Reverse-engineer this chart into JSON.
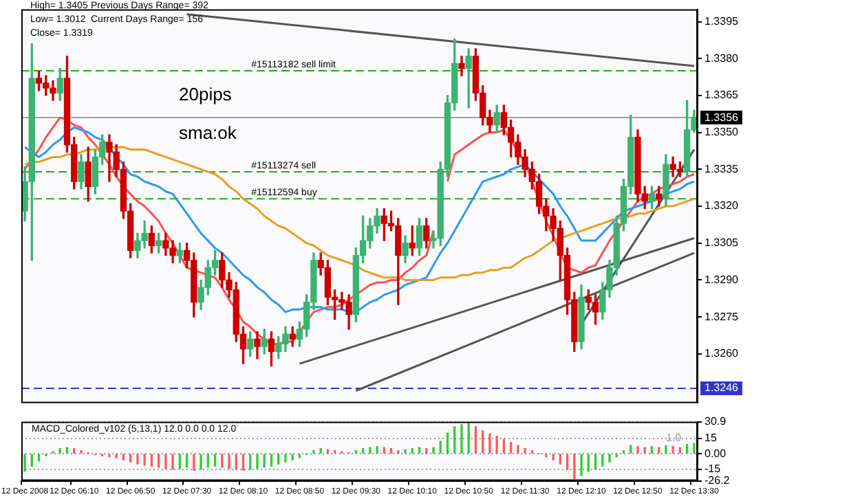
{
  "chart_data": [
    {
      "type": "candlestick",
      "categories": [
        "12 Dec 2008",
        null,
        null,
        null,
        null,
        null,
        null,
        "12 Dec 06:10",
        null,
        null,
        null,
        null,
        null,
        null,
        null,
        "12 Dec 06:50",
        null,
        null,
        null,
        null,
        null,
        null,
        null,
        "12 Dec 07:30",
        null,
        null,
        null,
        null,
        null,
        null,
        null,
        "12 Dec 08:10",
        null,
        null,
        null,
        null,
        null,
        null,
        null,
        "12 Dec 08:50",
        null,
        null,
        null,
        null,
        null,
        null,
        null,
        "12 Dec 09:30",
        null,
        null,
        null,
        null,
        null,
        null,
        null,
        "12 Dec 10:10",
        null,
        null,
        null,
        null,
        null,
        null,
        null,
        "12 Dec 10:50",
        null,
        null,
        null,
        null,
        null,
        null,
        null,
        "12 Dec 11:30",
        null,
        null,
        null,
        null,
        null,
        null,
        null,
        "12 Dec 12:10",
        null,
        null,
        null,
        null,
        null,
        null,
        null,
        "12 Dec 12:50",
        null,
        null,
        null,
        null,
        null,
        null,
        null,
        "12 Dec 13:30"
      ],
      "ohlc": [
        [
          1.3318,
          1.3336,
          1.3314,
          1.333
        ],
        [
          1.333,
          1.3386,
          1.3298,
          1.3372
        ],
        [
          1.3372,
          1.3375,
          1.3367,
          1.337
        ],
        [
          1.337,
          1.3373,
          1.3365,
          1.3368
        ],
        [
          1.3368,
          1.3371,
          1.3363,
          1.3366
        ],
        [
          1.3366,
          1.3376,
          1.3363,
          1.3372
        ],
        [
          1.3372,
          1.3381,
          1.3342,
          1.3345
        ],
        [
          1.3345,
          1.3348,
          1.3327,
          1.333
        ],
        [
          1.333,
          1.3341,
          1.3327,
          1.3338
        ],
        [
          1.3338,
          1.3344,
          1.3322,
          1.3328
        ],
        [
          1.3328,
          1.3343,
          1.3325,
          1.334
        ],
        [
          1.334,
          1.3349,
          1.3337,
          1.3346
        ],
        [
          1.3346,
          1.3349,
          1.333,
          1.3342
        ],
        [
          1.3342,
          1.3345,
          1.3332,
          1.3335
        ],
        [
          1.3335,
          1.3338,
          1.3315,
          1.3318
        ],
        [
          1.3318,
          1.3321,
          1.3299,
          1.3302
        ],
        [
          1.3302,
          1.3309,
          1.3299,
          1.3306
        ],
        [
          1.3306,
          1.3314,
          1.3303,
          1.3309
        ],
        [
          1.3309,
          1.3312,
          1.3301,
          1.3304
        ],
        [
          1.3304,
          1.3309,
          1.3301,
          1.3306
        ],
        [
          1.3306,
          1.3309,
          1.33,
          1.3303
        ],
        [
          1.3303,
          1.3306,
          1.3297,
          1.33
        ],
        [
          1.33,
          1.3305,
          1.3297,
          1.3302
        ],
        [
          1.3302,
          1.3305,
          1.3295,
          1.3298
        ],
        [
          1.3298,
          1.3301,
          1.3275,
          1.3281
        ],
        [
          1.3281,
          1.329,
          1.3278,
          1.3287
        ],
        [
          1.3287,
          1.3298,
          1.3284,
          1.3295
        ],
        [
          1.3295,
          1.3302,
          1.3292,
          1.3298
        ],
        [
          1.3298,
          1.3301,
          1.3287,
          1.329
        ],
        [
          1.329,
          1.3293,
          1.3283,
          1.3286
        ],
        [
          1.3286,
          1.3289,
          1.3265,
          1.3268
        ],
        [
          1.3268,
          1.3271,
          1.3256,
          1.3262
        ],
        [
          1.3262,
          1.3269,
          1.3259,
          1.3266
        ],
        [
          1.3266,
          1.3269,
          1.3258,
          1.3263
        ],
        [
          1.3263,
          1.327,
          1.326,
          1.3266
        ],
        [
          1.3266,
          1.3269,
          1.3255,
          1.3261
        ],
        [
          1.3261,
          1.3267,
          1.3258,
          1.3264
        ],
        [
          1.3264,
          1.3271,
          1.3261,
          1.3268
        ],
        [
          1.3268,
          1.3271,
          1.3263,
          1.3266
        ],
        [
          1.3266,
          1.3273,
          1.3263,
          1.327
        ],
        [
          1.327,
          1.3284,
          1.3267,
          1.3281
        ],
        [
          1.3281,
          1.3301,
          1.3278,
          1.3298
        ],
        [
          1.3298,
          1.3301,
          1.3292,
          1.3295
        ],
        [
          1.3295,
          1.3298,
          1.328,
          1.3283
        ],
        [
          1.3283,
          1.3286,
          1.3274,
          1.3282
        ],
        [
          1.3282,
          1.3285,
          1.3278,
          1.3281
        ],
        [
          1.3281,
          1.3284,
          1.327,
          1.3276
        ],
        [
          1.3276,
          1.3303,
          1.3273,
          1.33
        ],
        [
          1.33,
          1.3316,
          1.3297,
          1.3306
        ],
        [
          1.3306,
          1.3315,
          1.3303,
          1.3312
        ],
        [
          1.3312,
          1.3319,
          1.3309,
          1.3316
        ],
        [
          1.3316,
          1.3319,
          1.3306,
          1.3313
        ],
        [
          1.3313,
          1.3318,
          1.331,
          1.3312
        ],
        [
          1.3312,
          1.3315,
          1.328,
          1.33
        ],
        [
          1.33,
          1.3308,
          1.3297,
          1.3305
        ],
        [
          1.3305,
          1.3312,
          1.33,
          1.3303
        ],
        [
          1.3303,
          1.3315,
          1.33,
          1.3312
        ],
        [
          1.3312,
          1.3315,
          1.3303,
          1.3306
        ],
        [
          1.3306,
          1.331,
          1.3303,
          1.3307
        ],
        [
          1.3307,
          1.3338,
          1.3304,
          1.3335
        ],
        [
          1.3335,
          1.3365,
          1.3332,
          1.3362
        ],
        [
          1.3362,
          1.3388,
          1.3359,
          1.3378
        ],
        [
          1.3378,
          1.3381,
          1.3373,
          1.3376
        ],
        [
          1.3376,
          1.3384,
          1.336,
          1.3381
        ],
        [
          1.3381,
          1.3384,
          1.3363,
          1.3366
        ],
        [
          1.3366,
          1.3369,
          1.3353,
          1.3356
        ],
        [
          1.3356,
          1.3359,
          1.335,
          1.3353
        ],
        [
          1.3353,
          1.3361,
          1.335,
          1.3358
        ],
        [
          1.3358,
          1.3361,
          1.3349,
          1.3352
        ],
        [
          1.3352,
          1.3355,
          1.334,
          1.3346
        ],
        [
          1.3346,
          1.3349,
          1.3337,
          1.334
        ],
        [
          1.334,
          1.3343,
          1.3332,
          1.3335
        ],
        [
          1.3335,
          1.3338,
          1.3327,
          1.333
        ],
        [
          1.333,
          1.3333,
          1.3317,
          1.332
        ],
        [
          1.332,
          1.3323,
          1.331,
          1.3316
        ],
        [
          1.3316,
          1.3319,
          1.3306,
          1.3311
        ],
        [
          1.3311,
          1.3314,
          1.329,
          1.33
        ],
        [
          1.33,
          1.3303,
          1.3276,
          1.3282
        ],
        [
          1.3282,
          1.3285,
          1.3261,
          1.3265
        ],
        [
          1.3265,
          1.3288,
          1.3262,
          1.3283
        ],
        [
          1.3283,
          1.3286,
          1.3278,
          1.3281
        ],
        [
          1.3281,
          1.3284,
          1.3272,
          1.3277
        ],
        [
          1.3277,
          1.3289,
          1.3274,
          1.3286
        ],
        [
          1.3286,
          1.3298,
          1.3283,
          1.3295
        ],
        [
          1.3295,
          1.3316,
          1.3292,
          1.3313
        ],
        [
          1.3313,
          1.3331,
          1.331,
          1.3328
        ],
        [
          1.3328,
          1.3357,
          1.3325,
          1.3348
        ],
        [
          1.3348,
          1.3351,
          1.3322,
          1.3325
        ],
        [
          1.3325,
          1.3328,
          1.3319,
          1.3322
        ],
        [
          1.3322,
          1.3328,
          1.3319,
          1.3325
        ],
        [
          1.3325,
          1.3328,
          1.332,
          1.3323
        ],
        [
          1.3323,
          1.3341,
          1.332,
          1.3337
        ],
        [
          1.3337,
          1.334,
          1.3332,
          1.3335
        ],
        [
          1.3335,
          1.3338,
          1.3332,
          1.3334
        ],
        [
          1.3334,
          1.3363,
          1.3332,
          1.3351
        ],
        [
          1.3351,
          1.3359,
          1.335,
          1.3356
        ]
      ],
      "colors": [
        "#3cb371",
        "#3cb371",
        "#cc0000",
        "#cc0000",
        "#cc0000",
        "#3cb371",
        "#cc0000",
        "#cc0000",
        "#3cb371",
        "#cc0000",
        "#3cb371",
        "#3cb371",
        "#cc0000",
        "#cc0000",
        "#cc0000",
        "#cc0000",
        "#3cb371",
        "#3cb371",
        "#cc0000",
        "#3cb371",
        "#cc0000",
        "#cc0000",
        "#3cb371",
        "#cc0000",
        "#cc0000",
        "#3cb371",
        "#3cb371",
        "#3cb371",
        "#cc0000",
        "#cc0000",
        "#cc0000",
        "#cc0000",
        "#3cb371",
        "#cc0000",
        "#3cb371",
        "#cc0000",
        "#3cb371",
        "#3cb371",
        "#cc0000",
        "#3cb371",
        "#3cb371",
        "#3cb371",
        "#cc0000",
        "#cc0000",
        "#cc0000",
        "#cc0000",
        "#cc0000",
        "#3cb371",
        "#3cb371",
        "#3cb371",
        "#3cb371",
        "#cc0000",
        "#cc0000",
        "#cc0000",
        "#3cb371",
        "#cc0000",
        "#3cb371",
        "#cc0000",
        "#3cb371",
        "#3cb371",
        "#3cb371",
        "#3cb371",
        "#cc0000",
        "#3cb371",
        "#cc0000",
        "#cc0000",
        "#cc0000",
        "#3cb371",
        "#cc0000",
        "#cc0000",
        "#cc0000",
        "#cc0000",
        "#cc0000",
        "#cc0000",
        "#cc0000",
        "#cc0000",
        "#cc0000",
        "#cc0000",
        "#cc0000",
        "#3cb371",
        "#cc0000",
        "#cc0000",
        "#3cb371",
        "#3cb371",
        "#3cb371",
        "#3cb371",
        "#3cb371",
        "#cc0000",
        "#cc0000",
        "#3cb371",
        "#cc0000",
        "#3cb371",
        "#cc0000",
        "#cc0000",
        "#3cb371",
        "#3cb371"
      ],
      "series": [
        {
          "type": "line",
          "color": "#e6a020",
          "values": [
            1.3337,
            1.3338,
            1.3338,
            1.3339,
            1.334,
            1.334,
            1.3341,
            1.3341,
            1.3342,
            1.3343,
            1.3343,
            1.3344,
            1.3344,
            1.3344,
            1.3344,
            1.3343,
            1.3343,
            1.3343,
            1.3342,
            1.3341,
            1.334,
            1.3339,
            1.3338,
            1.3337,
            1.3336,
            1.3335,
            1.3334,
            1.3333,
            1.3331,
            1.3328,
            1.3326,
            1.3323,
            1.3321,
            1.3319,
            1.3316,
            1.3314,
            1.3312,
            1.3311,
            1.3309,
            1.3307,
            1.3305,
            1.3304,
            1.3302,
            1.33,
            1.3299,
            1.3298,
            1.3297,
            1.3296,
            1.3294,
            1.3293,
            1.3292,
            1.3291,
            1.3291,
            1.3291,
            1.329,
            1.329,
            1.329,
            1.329,
            1.329,
            1.3291,
            1.3291,
            1.3291,
            1.3292,
            1.3292,
            1.3293,
            1.3293,
            1.3294,
            1.3294,
            1.3295,
            1.3295,
            1.3297,
            1.3299,
            1.33,
            1.3302,
            1.3304,
            1.3306,
            1.3307,
            1.3308,
            1.3309,
            1.331,
            1.3311,
            1.3312,
            1.3313,
            1.3314,
            1.3315,
            1.3315,
            1.3316,
            1.3317,
            1.3317,
            1.3318,
            1.3319,
            1.332,
            1.332,
            1.3321,
            1.3322,
            1.3323
          ]
        },
        {
          "type": "line",
          "color": "#2b9af3",
          "values": [
            1.3344,
            1.3342,
            1.334,
            1.3342,
            1.3345,
            1.3347,
            1.335,
            1.3352,
            1.3351,
            1.335,
            1.3348,
            1.3347,
            1.3344,
            1.334,
            1.3337,
            1.3333,
            1.3332,
            1.333,
            1.3329,
            1.3328,
            1.3326,
            1.3325,
            1.3321,
            1.3317,
            1.3313,
            1.3309,
            1.3306,
            1.3303,
            1.3301,
            1.3298,
            1.3295,
            1.3292,
            1.329,
            1.3287,
            1.3285,
            1.3282,
            1.328,
            1.3277,
            1.3278,
            1.3278,
            1.3279,
            1.3279,
            1.3279,
            1.3278,
            1.3278,
            1.3278,
            1.3277,
            1.3277,
            1.3279,
            1.3281,
            1.3282,
            1.3284,
            1.3285,
            1.3286,
            1.3288,
            1.3289,
            1.329,
            1.3291,
            1.3296,
            1.3301,
            1.3305,
            1.331,
            1.3315,
            1.332,
            1.3325,
            1.333,
            1.3331,
            1.3332,
            1.3333,
            1.3335,
            1.3336,
            1.3337,
            1.3334,
            1.3331,
            1.3328,
            1.3325,
            1.332,
            1.3316,
            1.3311,
            1.3306,
            1.3306,
            1.3306,
            1.3309,
            1.3312,
            1.3315,
            1.3318,
            1.3319,
            1.332,
            1.3321,
            1.3322,
            1.3323,
            1.3325,
            1.3326,
            1.3327,
            1.3329,
            1.333
          ]
        },
        {
          "type": "line",
          "color": "#ff5050",
          "values": [
            1.3335,
            1.3339,
            1.3343,
            1.3348,
            1.3352,
            1.3356,
            1.3355,
            1.3353,
            1.3352,
            1.3348,
            1.3345,
            1.3341,
            1.3337,
            1.3332,
            1.3328,
            1.3325,
            1.3322,
            1.332,
            1.3317,
            1.3314,
            1.3309,
            1.3305,
            1.33,
            1.3295,
            1.3294,
            1.3293,
            1.3292,
            1.3291,
            1.3287,
            1.3282,
            1.3278,
            1.3273,
            1.3271,
            1.3268,
            1.3266,
            1.3264,
            1.3264,
            1.3265,
            1.3265,
            1.3269,
            1.3273,
            1.3277,
            1.3278,
            1.3279,
            1.3279,
            1.328,
            1.3282,
            1.3284,
            1.3286,
            1.3288,
            1.3289,
            1.3289,
            1.329,
            1.329,
            1.3293,
            1.3295,
            1.3298,
            1.33,
            1.331,
            null,
            1.333,
            1.3341,
            1.3343,
            1.3345,
            1.3347,
            1.3349,
            1.335,
            1.335,
            1.3351,
            1.3347,
            1.3342,
            1.3338,
            1.333,
            1.3322,
            1.3314,
            1.3308,
            1.3301,
            1.3295,
            1.3294,
            1.3293,
            1.3295,
            1.3296,
            1.3301,
            1.3306,
            1.331,
            1.3314,
            1.3318,
            1.3322,
            1.3324,
            1.3325,
            1.3327,
            1.3328,
            1.3329,
            1.333,
            1.3332,
            1.3333
          ]
        },
        {
          "type": "line",
          "color": "#555555",
          "x": [
            "12 Dec 07:30",
            "12 Dec 13:30"
          ],
          "values": [
            1.3398,
            1.3377
          ]
        },
        {
          "type": "line",
          "color": "#555555",
          "x": [
            "12 Dec 08:50",
            "12 Dec 13:30"
          ],
          "values": [
            1.3256,
            1.3307
          ]
        },
        {
          "type": "line",
          "color": "#555555",
          "x": [
            "12 Dec 09:30",
            "12 Dec 13:30"
          ],
          "values": [
            1.3245,
            1.3301
          ]
        },
        {
          "type": "line",
          "color": "#555555",
          "x": [
            "12 Dec 12:10",
            "12 Dec 13:30"
          ],
          "values": [
            1.3272,
            1.3343
          ]
        }
      ],
      "ylim": [
        1.324,
        1.34
      ],
      "yticks": [
        1.3395,
        {
          "value": 1.338,
          "label": "1.3380"
        },
        1.3365,
        {
          "value": 1.335,
          "label": "1.3350"
        },
        1.3335,
        {
          "value": 1.332,
          "label": "1.3320"
        },
        1.3305,
        {
          "value": 1.329,
          "label": "1.3290"
        },
        1.3275,
        {
          "value": 1.326,
          "label": "1.3260"
        }
      ],
      "tick_labels": "y",
      "ref_lines": [
        {
          "axis": "y",
          "value": 1.3375,
          "label": "#15113182 sell limit",
          "color": "#22aa22",
          "line_style": "dashed"
        },
        {
          "axis": "y",
          "value": 1.3334,
          "label": "#15113274 sell",
          "color": "#22aa22",
          "line_style": "dashed"
        },
        {
          "axis": "y",
          "value": 1.3323,
          "label": "#15112594 buy",
          "color": "#22aa22",
          "line_style": "dashed"
        },
        {
          "axis": "y",
          "value": 1.3356,
          "label": "1.3356",
          "color": "#a0a0a0",
          "line_style": "solid"
        },
        {
          "axis": "y",
          "value": 1.3246,
          "label": "1.3246",
          "color": "#3333cc",
          "line_style": "dashed"
        }
      ],
      "annotations": [
        "High= 1.3405",
        "Low= 1.3012",
        "Close= 1.3319",
        "Previous Days Range= 392",
        "Current Days Range= 156",
        "20pips",
        "sma:ok"
      ]
    },
    {
      "type": "bar",
      "title": "MACD_Colored_v102 (5,13,1) 12.0 0.0 0.0 12.0",
      "categories": [
        "12 Dec 2008",
        null,
        null,
        null,
        null,
        null,
        null,
        "12 Dec 06:10",
        null,
        null,
        null,
        null,
        null,
        null,
        null,
        "12 Dec 06:50",
        null,
        null,
        null,
        null,
        null,
        null,
        null,
        "12 Dec 07:30",
        null,
        null,
        null,
        null,
        null,
        null,
        null,
        "12 Dec 08:10",
        null,
        null,
        null,
        null,
        null,
        null,
        null,
        "12 Dec 08:50",
        null,
        null,
        null,
        null,
        null,
        null,
        null,
        "12 Dec 09:30",
        null,
        null,
        null,
        null,
        null,
        null,
        null,
        "12 Dec 10:10",
        null,
        null,
        null,
        null,
        null,
        null,
        null,
        "12 Dec 10:50",
        null,
        null,
        null,
        null,
        null,
        null,
        null,
        "12 Dec 11:30",
        null,
        null,
        null,
        null,
        null,
        null,
        null,
        "12 Dec 12:10",
        null,
        null,
        null,
        null,
        null,
        null,
        null,
        "12 Dec 12:50",
        null,
        null,
        null,
        null,
        null,
        null,
        null,
        "12 Dec 13:30"
      ],
      "values": [
        -17,
        -12,
        -7,
        -2,
        2,
        5,
        6,
        5,
        3,
        1,
        -1,
        -2,
        -3,
        -4,
        -6,
        -8,
        -10,
        -11,
        -12,
        -13,
        -14,
        -15,
        -14,
        -13,
        -16,
        -15,
        -13,
        -12,
        -13,
        -14,
        -15,
        -16,
        -15,
        -14,
        -13,
        -12,
        -10,
        -8,
        -6,
        -4,
        -1,
        3,
        5,
        4,
        3,
        2,
        1,
        3,
        5,
        6,
        7,
        6,
        5,
        3,
        4,
        5,
        6,
        5,
        6,
        12,
        20,
        26,
        28,
        29,
        26,
        22,
        19,
        17,
        14,
        11,
        8,
        5,
        3,
        0,
        -3,
        -6,
        -10,
        -15,
        -24,
        -21,
        -17,
        -15,
        -12,
        -8,
        -3,
        3,
        8,
        7,
        6,
        7,
        6,
        8,
        7,
        6,
        9,
        10
      ],
      "colors": [
        "#33cc33",
        "#33cc33",
        "#33cc33",
        "#33cc33",
        "#33cc33",
        "#33cc33",
        "#33cc33",
        "#ff5a5a",
        "#ff5a5a",
        "#ff5a5a",
        "#ff5a5a",
        "#ff5a5a",
        "#ff5a5a",
        "#ff5a5a",
        "#ff5a5a",
        "#ff5a5a",
        "#ff5a5a",
        "#ff5a5a",
        "#ff5a5a",
        "#ff5a5a",
        "#ff5a5a",
        "#ff5a5a",
        "#33cc33",
        "#33cc33",
        "#ff5a5a",
        "#33cc33",
        "#33cc33",
        "#33cc33",
        "#ff5a5a",
        "#ff5a5a",
        "#ff5a5a",
        "#ff5a5a",
        "#33cc33",
        "#33cc33",
        "#33cc33",
        "#33cc33",
        "#33cc33",
        "#33cc33",
        "#33cc33",
        "#33cc33",
        "#33cc33",
        "#33cc33",
        "#33cc33",
        "#ff5a5a",
        "#ff5a5a",
        "#ff5a5a",
        "#ff5a5a",
        "#33cc33",
        "#33cc33",
        "#33cc33",
        "#33cc33",
        "#ff5a5a",
        "#ff5a5a",
        "#ff5a5a",
        "#33cc33",
        "#33cc33",
        "#33cc33",
        "#ff5a5a",
        "#33cc33",
        "#33cc33",
        "#33cc33",
        "#33cc33",
        "#33cc33",
        "#33cc33",
        "#ff5a5a",
        "#ff5a5a",
        "#ff5a5a",
        "#ff5a5a",
        "#ff5a5a",
        "#ff5a5a",
        "#ff5a5a",
        "#ff5a5a",
        "#ff5a5a",
        "#ff5a5a",
        "#ff5a5a",
        "#ff5a5a",
        "#ff5a5a",
        "#ff5a5a",
        "#ff5a5a",
        "#33cc33",
        "#33cc33",
        "#33cc33",
        "#33cc33",
        "#33cc33",
        "#33cc33",
        "#33cc33",
        "#33cc33",
        "#ff5a5a",
        "#ff5a5a",
        "#33cc33",
        "#ff5a5a",
        "#33cc33",
        "#ff5a5a",
        "#ff5a5a",
        "#33cc33",
        "#33cc33"
      ],
      "ylim": [
        -26.2,
        30.9
      ],
      "yticks": [
        30.9,
        15,
        {
          "value": 0,
          "label": "0.00"
        },
        -15,
        -26.2
      ],
      "grid": "y",
      "annotations": [
        "1.0"
      ]
    }
  ]
}
